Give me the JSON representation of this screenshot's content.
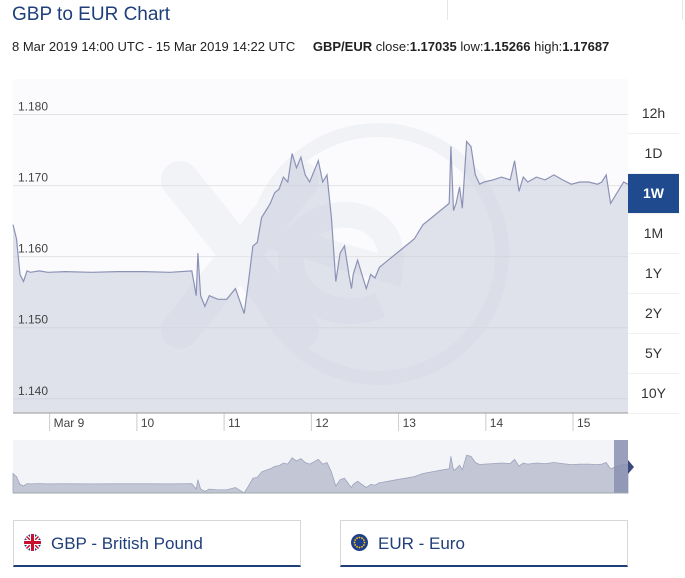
{
  "header": {
    "title": "GBP to EUR Chart",
    "range_text": "8 Mar 2019 14:00 UTC - 15 Mar 2019 14:22 UTC",
    "pair": "GBP/EUR",
    "close_label": "close:",
    "close_value": "1.17035",
    "low_label": "low:",
    "low_value": "1.15266",
    "high_label": "high:",
    "high_value": "1.17687"
  },
  "ranges": [
    {
      "label": "12h",
      "active": false
    },
    {
      "label": "1D",
      "active": false
    },
    {
      "label": "1W",
      "active": true
    },
    {
      "label": "1M",
      "active": false
    },
    {
      "label": "1Y",
      "active": false
    },
    {
      "label": "2Y",
      "active": false
    },
    {
      "label": "5Y",
      "active": false
    },
    {
      "label": "10Y",
      "active": false
    }
  ],
  "currencies": [
    {
      "code_label": "GBP - British Pound",
      "flag_icon": "uk-flag-icon"
    },
    {
      "code_label": "EUR - Euro",
      "flag_icon": "eu-flag-icon"
    }
  ],
  "chart_data": {
    "type": "area",
    "ylim": [
      1.138,
      1.185
    ],
    "xlim": [
      0,
      7.05
    ],
    "yticks": [
      "1.140",
      "1.150",
      "1.160",
      "1.170",
      "1.180"
    ],
    "xticks": [
      {
        "label": "Mar 9",
        "x": 0.42
      },
      {
        "label": "10",
        "x": 1.42
      },
      {
        "label": "11",
        "x": 2.42
      },
      {
        "label": "12",
        "x": 3.42
      },
      {
        "label": "13",
        "x": 4.42
      },
      {
        "label": "14",
        "x": 5.42
      },
      {
        "label": "15",
        "x": 6.42
      }
    ],
    "grid": true,
    "series": [
      {
        "x": [
          0,
          0.04,
          0.08,
          0.12,
          0.16,
          0.2,
          0.3,
          0.4,
          0.6,
          0.9,
          1.2,
          1.5,
          1.8,
          2.05,
          2.1,
          2.12,
          2.15,
          2.2,
          2.25,
          2.35,
          2.45,
          2.55,
          2.65,
          2.7,
          2.75,
          2.8,
          2.85,
          2.9,
          2.95,
          3.0,
          3.05,
          3.1,
          3.15,
          3.2,
          3.25,
          3.3,
          3.35,
          3.4,
          3.45,
          3.5,
          3.55,
          3.6,
          3.65,
          3.7,
          3.75,
          3.8,
          3.85,
          3.88,
          3.9,
          3.95,
          4.0,
          4.05,
          4.1,
          4.15,
          4.2,
          4.3,
          4.4,
          4.5,
          4.6,
          4.7,
          4.8,
          4.9,
          5.0,
          5.02,
          5.05,
          5.08,
          5.12,
          5.15,
          5.2,
          5.25,
          5.3,
          5.35,
          5.4,
          5.5,
          5.6,
          5.7,
          5.75,
          5.8,
          5.85,
          5.9,
          6.0,
          6.1,
          6.2,
          6.3,
          6.4,
          6.5,
          6.6,
          6.7,
          6.75,
          6.8,
          6.85,
          6.9,
          7.0,
          7.05
        ],
        "y": [
          1.1645,
          1.1625,
          1.1575,
          1.1565,
          1.158,
          1.1578,
          1.158,
          1.1578,
          1.1579,
          1.1578,
          1.1579,
          1.1579,
          1.1578,
          1.158,
          1.1545,
          1.1605,
          1.1545,
          1.153,
          1.1545,
          1.154,
          1.154,
          1.1555,
          1.152,
          1.1565,
          1.1615,
          1.162,
          1.1655,
          1.1665,
          1.1675,
          1.169,
          1.1695,
          1.1712,
          1.1705,
          1.1745,
          1.1725,
          1.174,
          1.1715,
          1.1705,
          1.172,
          1.1735,
          1.1705,
          1.1715,
          1.1655,
          1.1565,
          1.1605,
          1.1615,
          1.1575,
          1.1555,
          1.1575,
          1.1595,
          1.1575,
          1.1555,
          1.1575,
          1.157,
          1.1585,
          1.1595,
          1.1605,
          1.1615,
          1.1625,
          1.1645,
          1.1655,
          1.1665,
          1.1675,
          1.1755,
          1.1665,
          1.1675,
          1.1698,
          1.1668,
          1.1762,
          1.1755,
          1.1715,
          1.1702,
          1.1705,
          1.1708,
          1.1712,
          1.1708,
          1.1735,
          1.1692,
          1.1712,
          1.1705,
          1.1712,
          1.1708,
          1.1715,
          1.1708,
          1.1702,
          1.1705,
          1.1705,
          1.1702,
          1.1705,
          1.1715,
          1.1675,
          1.1685,
          1.1705,
          1.1702
        ]
      }
    ]
  }
}
